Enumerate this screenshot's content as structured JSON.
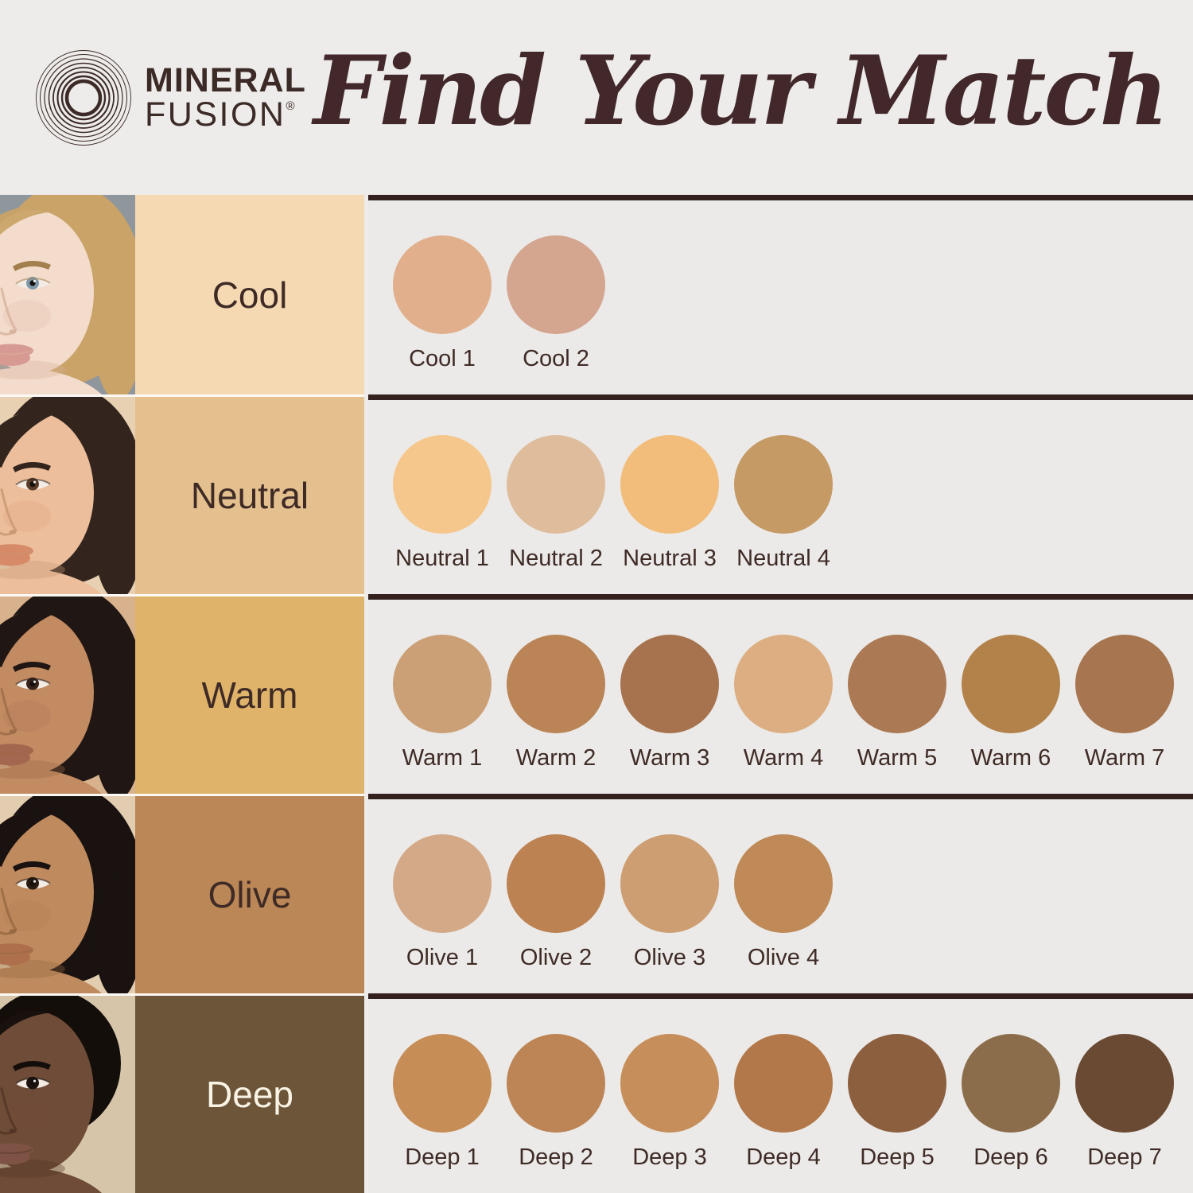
{
  "header": {
    "logo": {
      "line1": "MINERAL",
      "line2": "FUSION",
      "registered": "®"
    },
    "title": "Find Your Match"
  },
  "colors": {
    "page_bg": "#edecea",
    "panel_bg": "#ebeae8",
    "separator": "#34211d",
    "text_dark": "#3f2b26",
    "title_color": "#42282a",
    "row_gap_line": "#fcf9f5",
    "logo_color": "#3c2a27"
  },
  "rows": [
    {
      "id": "cool",
      "label": "Cool",
      "label_bg": "#f5d9b3",
      "label_text": "#3f2b26",
      "photo": {
        "description": "fair-skinned model with blonde hair and blue eyes on gray background",
        "bg": "#8f969c",
        "skin": "#f3dccb",
        "skin_shadow": "#d8b29c",
        "hair": "#c9a368",
        "brow": "#a37f4e",
        "iris": "#7f99a9",
        "lips": "#d79a92",
        "fringe": false,
        "short_hair": false
      },
      "swatches": [
        {
          "name": "Cool 1",
          "color": "#e2af8c"
        },
        {
          "name": "Cool 2",
          "color": "#d4a58f"
        }
      ]
    },
    {
      "id": "neutral",
      "label": "Neutral",
      "label_bg": "#e5c08f",
      "label_text": "#3f2b26",
      "photo": {
        "description": "light-medium skinned model with dark brown hair on beige background",
        "bg": "#e7d1b2",
        "skin": "#ecbe9b",
        "skin_shadow": "#c89772",
        "hair": "#33241d",
        "brow": "#33241d",
        "iris": "#5b3d2a",
        "lips": "#d68a68",
        "fringe": true,
        "short_hair": false
      },
      "swatches": [
        {
          "name": "Neutral 1",
          "color": "#f6c78c"
        },
        {
          "name": "Neutral 2",
          "color": "#dfbd9c"
        },
        {
          "name": "Neutral 3",
          "color": "#f2bd7b"
        },
        {
          "name": "Neutral 4",
          "color": "#c59a64"
        }
      ]
    },
    {
      "id": "warm",
      "label": "Warm",
      "label_bg": "#dfb369",
      "label_text": "#3f2b26",
      "photo": {
        "description": "medium golden-skinned model with dark hair on tan background",
        "bg": "#d8b28d",
        "skin": "#c28b62",
        "skin_shadow": "#9c6a48",
        "hair": "#201613",
        "brow": "#201613",
        "iris": "#38241a",
        "lips": "#a3664e",
        "fringe": true,
        "short_hair": false
      },
      "swatches": [
        {
          "name": "Warm 1",
          "color": "#cba077"
        },
        {
          "name": "Warm 2",
          "color": "#ba8457"
        },
        {
          "name": "Warm 3",
          "color": "#a6734e"
        },
        {
          "name": "Warm 4",
          "color": "#dcae81"
        },
        {
          "name": "Warm 5",
          "color": "#ab7a54"
        },
        {
          "name": "Warm 6",
          "color": "#b2824a"
        },
        {
          "name": "Warm 7",
          "color": "#a77650"
        }
      ]
    },
    {
      "id": "olive",
      "label": "Olive",
      "label_bg": "#bc8756",
      "label_text": "#3f2b26",
      "photo": {
        "description": "tan olive-skinned model with black hair on warm beige background",
        "bg": "#e3cdb0",
        "skin": "#bf8a5e",
        "skin_shadow": "#96683f",
        "hair": "#191210",
        "brow": "#191210",
        "iris": "#2a1b13",
        "lips": "#ad6f4c",
        "fringe": true,
        "short_hair": false
      },
      "swatches": [
        {
          "name": "Olive 1",
          "color": "#d4a987"
        },
        {
          "name": "Olive 2",
          "color": "#bc8252"
        },
        {
          "name": "Olive 3",
          "color": "#cd9e72"
        },
        {
          "name": "Olive 4",
          "color": "#bf8a57"
        }
      ]
    },
    {
      "id": "deep",
      "label": "Deep",
      "label_bg": "#6d553a",
      "label_text": "#f8f3e4",
      "photo": {
        "description": "deep-skinned model with short black hair on cream background",
        "bg": "#d6c5a8",
        "skin": "#6e4c37",
        "skin_shadow": "#523526",
        "hair": "#140e0b",
        "brow": "#140e0b",
        "iris": "#1d1310",
        "lips": "#7e5244",
        "fringe": false,
        "short_hair": true
      },
      "swatches": [
        {
          "name": "Deep 1",
          "color": "#c78d56"
        },
        {
          "name": "Deep 2",
          "color": "#bd8455"
        },
        {
          "name": "Deep 3",
          "color": "#c68e5a"
        },
        {
          "name": "Deep 4",
          "color": "#b2784a"
        },
        {
          "name": "Deep 5",
          "color": "#8c5f3f"
        },
        {
          "name": "Deep 6",
          "color": "#8b6d4b"
        },
        {
          "name": "Deep 7",
          "color": "#6a4a32"
        }
      ]
    }
  ]
}
